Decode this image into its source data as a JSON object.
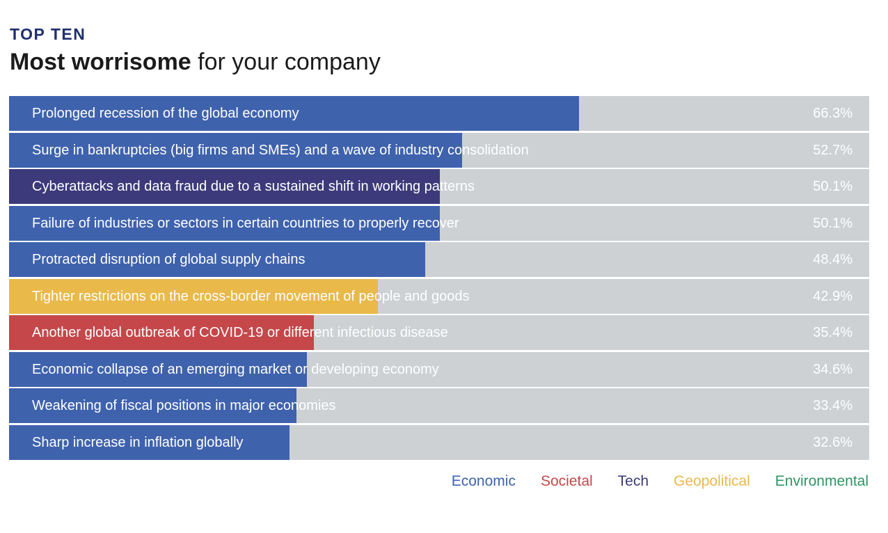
{
  "header": {
    "kicker": "TOP TEN",
    "title_strong": "Most worrisome",
    "title_rest": " for your company"
  },
  "colors": {
    "Economic": "#3f62ad",
    "Societal": "#c5474a",
    "Tech": "#3c3a7a",
    "Geopolitical": "#e9b94a",
    "Environmental": "#2e9466"
  },
  "chart_data": {
    "type": "bar",
    "orientation": "horizontal",
    "xlim": [
      0,
      100
    ],
    "categories": [
      "Prolonged recession of the global economy",
      "Surge in bankruptcies (big firms and SMEs) and a wave of industry consolidation",
      "Cyberattacks and data fraud due to a sustained shift in working patterns",
      "Failure of industries or sectors in certain countries to properly recover",
      "Protracted disruption of global supply chains",
      "Tighter restrictions on the cross-border movement of people and goods",
      "Another global outbreak of COVID-19 or different infectious disease",
      "Economic collapse of an emerging market or developing economy",
      "Weakening of fiscal positions in major economies",
      "Sharp increase in inflation globally"
    ],
    "values": [
      66.3,
      52.7,
      50.1,
      50.1,
      48.4,
      42.9,
      35.4,
      34.6,
      33.4,
      32.6
    ],
    "value_labels": [
      "66.3%",
      "52.7%",
      "50.1%",
      "50.1%",
      "48.4%",
      "42.9%",
      "35.4%",
      "34.6%",
      "33.4%",
      "32.6%"
    ],
    "groups": [
      "Economic",
      "Economic",
      "Tech",
      "Economic",
      "Economic",
      "Geopolitical",
      "Societal",
      "Economic",
      "Economic",
      "Economic"
    ],
    "legend": [
      "Economic",
      "Societal",
      "Tech",
      "Geopolitical",
      "Environmental"
    ],
    "legend_position": "bottom-right"
  }
}
